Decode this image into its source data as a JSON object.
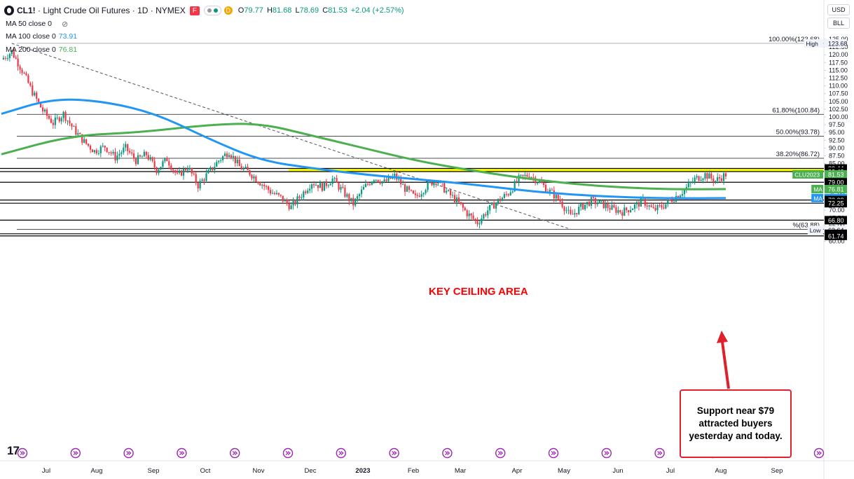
{
  "header": {
    "symbol": "CL1!",
    "title": "Light Crude Oil Futures",
    "interval": "1D",
    "exchange": "NYMEX",
    "badge_f": "F",
    "badge_d": "D",
    "ohlc": {
      "o_label": "O",
      "o": "79.77",
      "h_label": "H",
      "h": "81.68",
      "l_label": "L",
      "l": "78.69",
      "c_label": "C",
      "c": "81.53",
      "change": "+2.04 (+2.57%)"
    }
  },
  "indicators": [
    {
      "label": "MA 50 close 0",
      "value": "",
      "color": "#131722"
    },
    {
      "label": "MA 100 close 0",
      "value": "73.91",
      "color": "#2196f3"
    },
    {
      "label": "MA 200 close 0",
      "value": "76.81",
      "color": "#4caf50"
    }
  ],
  "axis_controls": {
    "currency": "USD",
    "unit": "BLL"
  },
  "annotations": {
    "ceiling": "KEY CEILING AREA",
    "note": "Support near $79 attracted buyers yesterday and today."
  },
  "logo": "17",
  "chart_data": {
    "type": "candlestick",
    "x_labels": [
      "Jul",
      "Aug",
      "Sep",
      "Oct",
      "Nov",
      "Dec",
      "2023",
      "Feb",
      "Mar",
      "Apr",
      "May",
      "Jun",
      "Jul",
      "Aug",
      "Sep"
    ],
    "x_label_bold": "2023",
    "y_ticks": [
      "125.00",
      "122.50",
      "120.00",
      "117.50",
      "115.00",
      "112.50",
      "110.00",
      "107.50",
      "105.00",
      "102.50",
      "100.00",
      "97.50",
      "95.00",
      "92.50",
      "90.00",
      "87.50",
      "85.00",
      "82.50",
      "80.00",
      "77.50",
      "75.00",
      "72.50",
      "70.00",
      "67.50",
      "65.00",
      "62.50",
      "60.00"
    ],
    "ylim": [
      59.5,
      127.0
    ],
    "fib_levels": [
      {
        "label": "100.00%(123.68)",
        "value": 123.68
      },
      {
        "label": "61.80%(100.84)",
        "value": 100.84
      },
      {
        "label": "50.00%(93.78)",
        "value": 93.78
      },
      {
        "label": "38.20%(86.72)",
        "value": 86.72
      },
      {
        "label": "%(63.88)",
        "value": 63.88
      }
    ],
    "horizontal_levels": [
      83.44,
      82.43,
      79.0,
      73.28,
      72.25,
      66.8,
      62.43,
      61.74
    ],
    "ceiling_zone": [
      82.43,
      83.44
    ],
    "price_tags": [
      {
        "text": "123.68",
        "value": 123.68,
        "color": "#f0f3fa",
        "fg": "#131722",
        "prefix": "High"
      },
      {
        "text": "83.44",
        "value": 83.44,
        "color": "#000000",
        "fg": "#ffffff"
      },
      {
        "text": "82.43",
        "value": 82.43,
        "color": "#000000",
        "fg": "#ffffff"
      },
      {
        "text": "81.53",
        "value": 81.53,
        "color": "#4caf50",
        "fg": "#ffffff",
        "prefix": "CLU2023"
      },
      {
        "text": "79.00",
        "value": 79.0,
        "color": "#000000",
        "fg": "#ffffff"
      },
      {
        "text": "76.81",
        "value": 76.81,
        "color": "#4caf50",
        "fg": "#ffffff",
        "prefix": "MA"
      },
      {
        "text": "73.91",
        "value": 73.91,
        "color": "#2196f3",
        "fg": "#ffffff",
        "prefix": "MA"
      },
      {
        "text": "73.28",
        "value": 73.28,
        "color": "#000000",
        "fg": "#ffffff"
      },
      {
        "text": "72.25",
        "value": 72.25,
        "color": "#000000",
        "fg": "#ffffff"
      },
      {
        "text": "66.80",
        "value": 66.8,
        "color": "#000000",
        "fg": "#ffffff"
      },
      {
        "text": "63.64",
        "value": 63.64,
        "color": "#f0f3fa",
        "fg": "#131722",
        "prefix": "Low"
      },
      {
        "text": "62.43",
        "value": 62.43,
        "color": "#000000",
        "fg": "#ffffff"
      },
      {
        "text": "61.74",
        "value": 61.74,
        "color": "#000000",
        "fg": "#ffffff"
      }
    ],
    "price_path": [
      [
        0,
        118.5
      ],
      [
        6,
        121.0
      ],
      [
        12,
        115.0
      ],
      [
        18,
        108.0
      ],
      [
        24,
        102.0
      ],
      [
        30,
        98.0
      ],
      [
        36,
        101.0
      ],
      [
        42,
        96.0
      ],
      [
        48,
        92.0
      ],
      [
        54,
        89.0
      ],
      [
        60,
        90.5
      ],
      [
        66,
        87.0
      ],
      [
        72,
        90.0
      ],
      [
        78,
        86.0
      ],
      [
        84,
        88.0
      ],
      [
        90,
        83.0
      ],
      [
        96,
        86.5
      ],
      [
        102,
        81.0
      ],
      [
        108,
        84.0
      ],
      [
        114,
        78.0
      ],
      [
        120,
        82.0
      ],
      [
        126,
        86.0
      ],
      [
        132,
        89.0
      ],
      [
        138,
        84.0
      ],
      [
        144,
        82.0
      ],
      [
        150,
        79.0
      ],
      [
        156,
        76.0
      ],
      [
        162,
        74.0
      ],
      [
        168,
        71.0
      ],
      [
        174,
        75.0
      ],
      [
        180,
        79.0
      ],
      [
        186,
        77.5
      ],
      [
        192,
        80.0
      ],
      [
        198,
        76.0
      ],
      [
        204,
        72.0
      ],
      [
        210,
        77.0
      ],
      [
        216,
        80.5
      ],
      [
        222,
        79.0
      ],
      [
        228,
        81.0
      ],
      [
        234,
        77.0
      ],
      [
        240,
        74.0
      ],
      [
        246,
        77.5
      ],
      [
        252,
        80.0
      ],
      [
        258,
        76.0
      ],
      [
        264,
        73.0
      ],
      [
        270,
        69.0
      ],
      [
        276,
        66.0
      ],
      [
        282,
        70.0
      ],
      [
        288,
        73.0
      ],
      [
        294,
        75.5
      ],
      [
        300,
        80.0
      ],
      [
        306,
        81.5
      ],
      [
        312,
        79.0
      ],
      [
        318,
        76.0
      ],
      [
        324,
        73.0
      ],
      [
        330,
        68.0
      ],
      [
        336,
        71.0
      ],
      [
        342,
        73.0
      ],
      [
        348,
        72.0
      ],
      [
        354,
        70.5
      ],
      [
        360,
        69.5
      ],
      [
        366,
        71.0
      ],
      [
        372,
        73.0
      ],
      [
        378,
        70.0
      ],
      [
        384,
        71.5
      ],
      [
        390,
        74.0
      ],
      [
        396,
        76.5
      ],
      [
        402,
        80.0
      ],
      [
        408,
        81.5
      ],
      [
        414,
        79.5
      ],
      [
        420,
        81.5
      ]
    ],
    "ma100": [
      [
        0,
        101.0
      ],
      [
        30,
        106.0
      ],
      [
        60,
        105.0
      ],
      [
        90,
        101.0
      ],
      [
        120,
        93.0
      ],
      [
        150,
        86.0
      ],
      [
        180,
        83.5
      ],
      [
        210,
        81.5
      ],
      [
        240,
        80.0
      ],
      [
        270,
        78.5
      ],
      [
        300,
        76.5
      ],
      [
        330,
        75.0
      ],
      [
        360,
        74.2
      ],
      [
        390,
        73.8
      ],
      [
        420,
        73.91
      ]
    ],
    "ma200": [
      [
        0,
        88.0
      ],
      [
        40,
        94.0
      ],
      [
        80,
        95.0
      ],
      [
        120,
        97.5
      ],
      [
        150,
        98.0
      ],
      [
        180,
        94.0
      ],
      [
        210,
        90.0
      ],
      [
        240,
        86.0
      ],
      [
        270,
        83.0
      ],
      [
        300,
        80.5
      ],
      [
        330,
        78.5
      ],
      [
        360,
        77.3
      ],
      [
        390,
        76.7
      ],
      [
        420,
        76.81
      ]
    ]
  }
}
